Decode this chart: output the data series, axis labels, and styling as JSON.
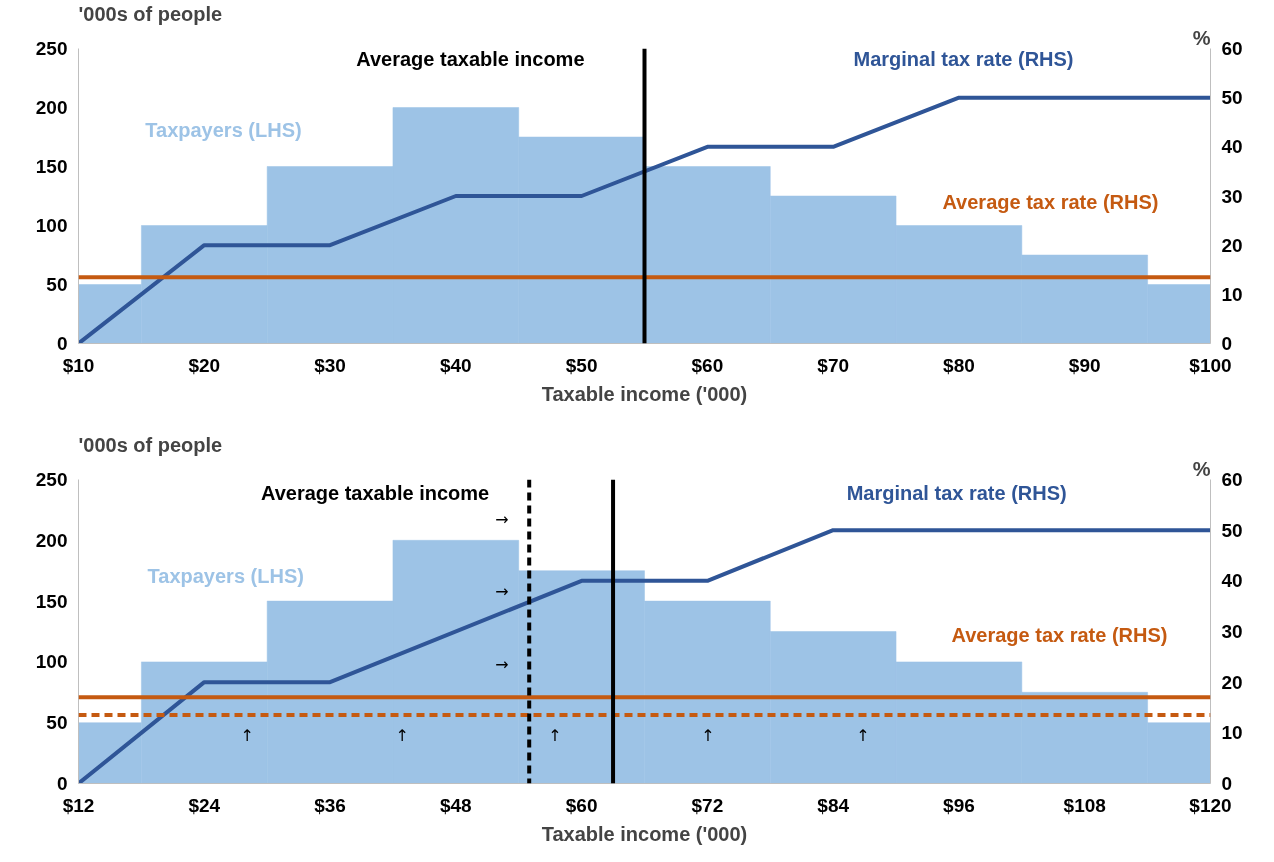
{
  "chart_data": [
    {
      "type": "histogram",
      "xlabel": "Taxable income ('000)",
      "ylabel": "'000s of people",
      "y2label": "%",
      "xlim": [
        10,
        100
      ],
      "xticks": [
        {
          "value": 10,
          "label": "$10"
        },
        {
          "value": 20,
          "label": "$20"
        },
        {
          "value": 30,
          "label": "$30"
        },
        {
          "value": 40,
          "label": "$40"
        },
        {
          "value": 50,
          "label": "$50"
        },
        {
          "value": 60,
          "label": "$60"
        },
        {
          "value": 70,
          "label": "$70"
        },
        {
          "value": 80,
          "label": "$80"
        },
        {
          "value": 90,
          "label": "$90"
        },
        {
          "value": 100,
          "label": "$100"
        }
      ],
      "ylim": [
        0,
        250
      ],
      "yticks": [
        0,
        50,
        100,
        150,
        200,
        250
      ],
      "y2lim": [
        0,
        60
      ],
      "y2ticks": [
        0,
        10,
        20,
        30,
        40,
        50,
        60
      ],
      "series": [
        {
          "name": "Taxpayers (LHS)",
          "color": "#9dc3e6",
          "bins": [
            10,
            15,
            25,
            35,
            45,
            55,
            65,
            75,
            85,
            95,
            100
          ],
          "values": [
            50,
            100,
            150,
            200,
            175,
            150,
            125,
            100,
            75,
            50
          ]
        },
        {
          "name": "Marginal tax rate (RHS)",
          "type": "line",
          "axis": "y2",
          "color": "#2f5597",
          "x": [
            10,
            20,
            30,
            40,
            50,
            60,
            70,
            80,
            100
          ],
          "values": [
            0,
            20,
            20,
            30,
            30,
            40,
            40,
            50,
            50
          ]
        }
      ],
      "ref_lines": [
        {
          "axis": "y2",
          "value": 13.5,
          "label": "Average tax rate (RHS)",
          "color": "#c55a11",
          "line_style": "solid"
        },
        {
          "axis": "x",
          "value": 55,
          "label": "Average taxable income",
          "color": "#000000",
          "line_style": "solid"
        }
      ],
      "grid": false,
      "legend": false
    },
    {
      "type": "histogram",
      "xlabel": "Taxable income ('000)",
      "ylabel": "'000s of people",
      "y2label": "%",
      "xlim": [
        12,
        120
      ],
      "xticks": [
        {
          "value": 12,
          "label": "$12"
        },
        {
          "value": 24,
          "label": "$24"
        },
        {
          "value": 36,
          "label": "$36"
        },
        {
          "value": 48,
          "label": "$48"
        },
        {
          "value": 60,
          "label": "$60"
        },
        {
          "value": 72,
          "label": "$72"
        },
        {
          "value": 84,
          "label": "$84"
        },
        {
          "value": 96,
          "label": "$96"
        },
        {
          "value": 108,
          "label": "$108"
        },
        {
          "value": 120,
          "label": "$120"
        }
      ],
      "ylim": [
        0,
        250
      ],
      "yticks": [
        0,
        50,
        100,
        150,
        200,
        250
      ],
      "y2lim": [
        0,
        60
      ],
      "y2ticks": [
        0,
        10,
        20,
        30,
        40,
        50,
        60
      ],
      "series": [
        {
          "name": "Taxpayers (LHS)",
          "color": "#9dc3e6",
          "bins": [
            12,
            18,
            30,
            42,
            54,
            66,
            78,
            90,
            102,
            114,
            120
          ],
          "values": [
            50,
            100,
            150,
            200,
            175,
            150,
            125,
            100,
            75,
            50
          ]
        },
        {
          "name": "Marginal tax rate (RHS)",
          "type": "line",
          "axis": "y2",
          "color": "#2f5597",
          "x": [
            12,
            24,
            36,
            60,
            72,
            84,
            120
          ],
          "values": [
            0,
            20,
            20,
            40,
            40,
            50,
            50
          ]
        }
      ],
      "ref_lines": [
        {
          "axis": "y2",
          "value": 17,
          "label": "Average tax rate (RHS)",
          "color": "#c55a11",
          "line_style": "solid"
        },
        {
          "axis": "y2",
          "value": 13.5,
          "label": null,
          "color": "#c55a11",
          "line_style": "dashed"
        },
        {
          "axis": "x",
          "value": 55,
          "label": "Average taxable income",
          "color": "#000000",
          "line_style": "dashed"
        },
        {
          "axis": "x",
          "value": 63,
          "label": null,
          "color": "#000000",
          "line_style": "solid"
        }
      ],
      "annotations": [
        "→",
        "→",
        "→",
        "↑",
        "↑",
        "↑",
        "↑",
        "↑"
      ],
      "grid": false,
      "legend": false
    }
  ]
}
